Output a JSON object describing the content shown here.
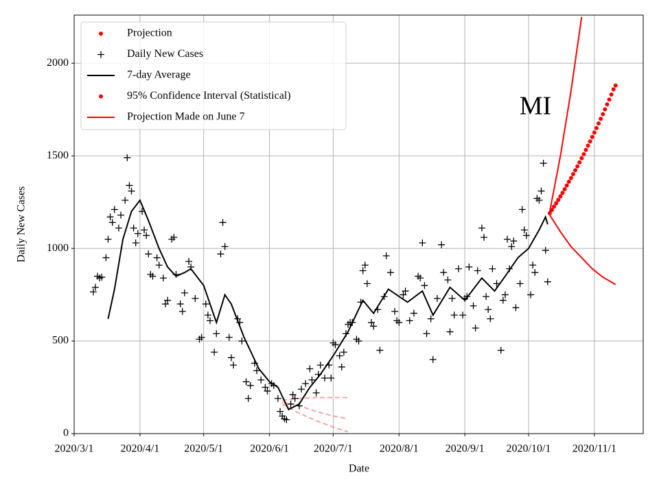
{
  "chart_data": {
    "type": "scatter",
    "annotation": "MI",
    "xlabel": "Date",
    "ylabel": "Daily New Cases",
    "xlim": [
      "2020-03-01",
      "2020-11-24"
    ],
    "ylim": [
      0,
      2260
    ],
    "xticks": [
      {
        "value": "2020-03-01",
        "label": "2020/3/1"
      },
      {
        "value": "2020-04-01",
        "label": "2020/4/1"
      },
      {
        "value": "2020-05-01",
        "label": "2020/5/1"
      },
      {
        "value": "2020-06-01",
        "label": "2020/6/1"
      },
      {
        "value": "2020-07-01",
        "label": "2020/7/1"
      },
      {
        "value": "2020-08-01",
        "label": "2020/8/1"
      },
      {
        "value": "2020-09-01",
        "label": "2020/9/1"
      },
      {
        "value": "2020-10-01",
        "label": "2020/10/1"
      },
      {
        "value": "2020-11-01",
        "label": "2020/11/1"
      }
    ],
    "yticks": [
      0,
      500,
      1000,
      1500,
      2000
    ],
    "grid": true,
    "legend": "upper left",
    "series": [
      {
        "name": "Projection",
        "color": "#ff0000",
        "style": "dot",
        "x": [
          "2020-10-11",
          "2020-10-12",
          "2020-10-13",
          "2020-10-14",
          "2020-10-15",
          "2020-10-16",
          "2020-10-17",
          "2020-10-18",
          "2020-10-19",
          "2020-10-20",
          "2020-10-21",
          "2020-10-22",
          "2020-10-23",
          "2020-10-24",
          "2020-10-25",
          "2020-10-26",
          "2020-10-27",
          "2020-10-28",
          "2020-10-29",
          "2020-10-30",
          "2020-10-31",
          "2020-11-01",
          "2020-11-02",
          "2020-11-03",
          "2020-11-04",
          "2020-11-05",
          "2020-11-06",
          "2020-11-07",
          "2020-11-08",
          "2020-11-09",
          "2020-11-10",
          "2020-11-11"
        ],
        "values": [
          1190,
          1208,
          1226,
          1244,
          1262,
          1281,
          1300,
          1320,
          1340,
          1360,
          1380,
          1401,
          1422,
          1443,
          1465,
          1487,
          1509,
          1532,
          1555,
          1578,
          1602,
          1626,
          1650,
          1675,
          1700,
          1725,
          1751,
          1778,
          1804,
          1831,
          1859,
          1880
        ]
      },
      {
        "name": "Daily New Cases",
        "color": "#000000",
        "style": "plus",
        "x": [
          "2020-03-10",
          "2020-03-11",
          "2020-03-12",
          "2020-03-13",
          "2020-03-14",
          "2020-03-16",
          "2020-03-17",
          "2020-03-18",
          "2020-03-19",
          "2020-03-20",
          "2020-03-22",
          "2020-03-23",
          "2020-03-25",
          "2020-03-26",
          "2020-03-27",
          "2020-03-28",
          "2020-03-29",
          "2020-03-30",
          "2020-03-31",
          "2020-04-02",
          "2020-04-03",
          "2020-04-04",
          "2020-04-05",
          "2020-04-06",
          "2020-04-07",
          "2020-04-09",
          "2020-04-10",
          "2020-04-12",
          "2020-04-13",
          "2020-04-14",
          "2020-04-16",
          "2020-04-17",
          "2020-04-18",
          "2020-04-20",
          "2020-04-21",
          "2020-04-22",
          "2020-04-24",
          "2020-04-25",
          "2020-04-27",
          "2020-04-29",
          "2020-04-30",
          "2020-05-02",
          "2020-05-03",
          "2020-05-04",
          "2020-05-06",
          "2020-05-07",
          "2020-05-09",
          "2020-05-10",
          "2020-05-11",
          "2020-05-13",
          "2020-05-14",
          "2020-05-15",
          "2020-05-17",
          "2020-05-18",
          "2020-05-19",
          "2020-05-21",
          "2020-05-22",
          "2020-05-23",
          "2020-05-25",
          "2020-05-26",
          "2020-05-28",
          "2020-05-30",
          "2020-05-31",
          "2020-06-02",
          "2020-06-03",
          "2020-06-05",
          "2020-06-06",
          "2020-06-07",
          "2020-06-08",
          "2020-06-09",
          "2020-06-11",
          "2020-06-12",
          "2020-06-13",
          "2020-06-15",
          "2020-06-16",
          "2020-06-18",
          "2020-06-20",
          "2020-06-21",
          "2020-06-23",
          "2020-06-24",
          "2020-06-25",
          "2020-06-27",
          "2020-06-29",
          "2020-06-30",
          "2020-07-01",
          "2020-07-02",
          "2020-07-04",
          "2020-07-05",
          "2020-07-06",
          "2020-07-07",
          "2020-07-08",
          "2020-07-09",
          "2020-07-10",
          "2020-07-12",
          "2020-07-13",
          "2020-07-14",
          "2020-07-15",
          "2020-07-16",
          "2020-07-17",
          "2020-07-19",
          "2020-07-20",
          "2020-07-22",
          "2020-07-23",
          "2020-07-25",
          "2020-07-26",
          "2020-07-28",
          "2020-07-30",
          "2020-07-31",
          "2020-08-01",
          "2020-08-03",
          "2020-08-04",
          "2020-08-06",
          "2020-08-08",
          "2020-08-10",
          "2020-08-11",
          "2020-08-12",
          "2020-08-13",
          "2020-08-14",
          "2020-08-16",
          "2020-08-17",
          "2020-08-19",
          "2020-08-21",
          "2020-08-22",
          "2020-08-24",
          "2020-08-25",
          "2020-08-26",
          "2020-08-27",
          "2020-08-29",
          "2020-08-31",
          "2020-09-01",
          "2020-09-02",
          "2020-09-03",
          "2020-09-05",
          "2020-09-06",
          "2020-09-07",
          "2020-09-09",
          "2020-09-10",
          "2020-09-11",
          "2020-09-12",
          "2020-09-13",
          "2020-09-14",
          "2020-09-16",
          "2020-09-18",
          "2020-09-19",
          "2020-09-20",
          "2020-09-21",
          "2020-09-22",
          "2020-09-23",
          "2020-09-24",
          "2020-09-25",
          "2020-09-27",
          "2020-09-28",
          "2020-09-29",
          "2020-09-30",
          "2020-10-02",
          "2020-10-03",
          "2020-10-04",
          "2020-10-05",
          "2020-10-06",
          "2020-10-07",
          "2020-10-08",
          "2020-10-09",
          "2020-10-10"
        ],
        "values": [
          765,
          790,
          850,
          840,
          845,
          950,
          1050,
          1170,
          1140,
          1210,
          1110,
          1180,
          1260,
          1490,
          1340,
          1310,
          1110,
          1030,
          1080,
          1200,
          1100,
          1070,
          970,
          860,
          850,
          950,
          910,
          840,
          700,
          720,
          1050,
          1060,
          860,
          700,
          660,
          760,
          930,
          900,
          730,
          510,
          520,
          700,
          640,
          610,
          440,
          540,
          970,
          1140,
          1010,
          520,
          410,
          370,
          620,
          600,
          500,
          280,
          190,
          260,
          380,
          340,
          290,
          250,
          230,
          270,
          260,
          190,
          120,
          95,
          80,
          75,
          160,
          210,
          190,
          150,
          240,
          270,
          350,
          290,
          220,
          320,
          370,
          300,
          370,
          300,
          490,
          480,
          420,
          360,
          440,
          540,
          590,
          600,
          600,
          510,
          500,
          710,
          880,
          910,
          810,
          600,
          580,
          670,
          450,
          740,
          960,
          870,
          660,
          610,
          600,
          750,
          770,
          610,
          650,
          850,
          840,
          1030,
          800,
          540,
          620,
          400,
          730,
          1020,
          870,
          830,
          550,
          730,
          640,
          890,
          640,
          730,
          740,
          900,
          690,
          570,
          880,
          1110,
          1060,
          740,
          670,
          620,
          890,
          810,
          450,
          720,
          750,
          1050,
          890,
          1010,
          1040,
          680,
          810,
          1210,
          1100,
          1070,
          750,
          910,
          870,
          1270,
          1260,
          1310,
          1460,
          990,
          820
        ]
      },
      {
        "name": "7-day Average",
        "color": "#000000",
        "style": "line",
        "x": [
          "2020-03-17",
          "2020-03-20",
          "2020-03-24",
          "2020-03-28",
          "2020-04-01",
          "2020-04-05",
          "2020-04-10",
          "2020-04-14",
          "2020-04-18",
          "2020-04-22",
          "2020-04-25",
          "2020-05-01",
          "2020-05-07",
          "2020-05-11",
          "2020-05-14",
          "2020-05-20",
          "2020-05-27",
          "2020-06-01",
          "2020-06-05",
          "2020-06-10",
          "2020-06-15",
          "2020-06-20",
          "2020-06-25",
          "2020-07-01",
          "2020-07-08",
          "2020-07-15",
          "2020-07-20",
          "2020-07-27",
          "2020-08-05",
          "2020-08-12",
          "2020-08-17",
          "2020-08-25",
          "2020-09-01",
          "2020-09-09",
          "2020-09-15",
          "2020-09-20",
          "2020-09-26",
          "2020-10-01",
          "2020-10-06",
          "2020-10-09",
          "2020-10-10"
        ],
        "values": [
          620,
          780,
          1050,
          1200,
          1260,
          1150,
          1000,
          900,
          850,
          870,
          890,
          800,
          600,
          750,
          700,
          520,
          350,
          280,
          250,
          130,
          160,
          250,
          320,
          420,
          550,
          720,
          650,
          780,
          710,
          770,
          640,
          790,
          720,
          840,
          770,
          850,
          950,
          1000,
          1100,
          1170,
          1130
        ]
      },
      {
        "name": "95% Confidence Interval (Statistical)",
        "color": "#ff0000",
        "style": "band",
        "x": [
          "2020-10-11",
          "2020-10-16",
          "2020-10-21",
          "2020-10-26",
          "2020-10-31",
          "2020-11-05",
          "2020-11-11"
        ],
        "upper": [
          1200,
          1500,
          1850,
          2250,
          null,
          null,
          null
        ],
        "values": [
          1180,
          1090,
          1010,
          950,
          890,
          845,
          805
        ]
      },
      {
        "name": "Projection Made on June 7",
        "color": "#ff0000",
        "line_color": "#f4a6a6",
        "style": "dashband",
        "x": [
          "2020-06-07",
          "2020-06-15",
          "2020-06-23",
          "2020-07-01",
          "2020-07-08"
        ],
        "upper": [
          180,
          190,
          195,
          195,
          195
        ],
        "values": [
          170,
          150,
          120,
          95,
          80
        ],
        "lower": [
          160,
          110,
          70,
          35,
          10
        ]
      }
    ]
  }
}
